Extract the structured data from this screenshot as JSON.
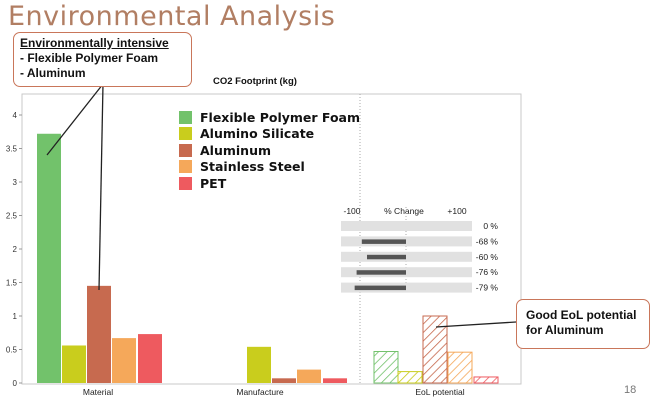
{
  "slide": {
    "title": "Environmental Analysis",
    "page_number": "18"
  },
  "callouts": {
    "intensive": {
      "heading": "Environmentally intensive",
      "items": [
        "- Flexible Polymer Foam",
        "- Aluminum"
      ]
    },
    "eol": {
      "lines": [
        "Good EoL potential",
        "for Aluminum"
      ]
    }
  },
  "change_panel": {
    "header_left": "-100",
    "header_mid": "% Change",
    "header_right": "+100",
    "rows": [
      {
        "value": 0,
        "label": "0 %"
      },
      {
        "value": -68,
        "label": "-68 %"
      },
      {
        "value": -60,
        "label": "-60 %"
      },
      {
        "value": -76,
        "label": "-76 %"
      },
      {
        "value": -79,
        "label": "-79 %"
      }
    ]
  },
  "chart_data": {
    "type": "bar",
    "title": "CO2 Footprint (kg)",
    "xlabel": "",
    "ylabel": "",
    "categories": [
      "Material",
      "Manufacture",
      "EoL potential"
    ],
    "ylim": [
      0,
      4.3
    ],
    "yticks": [
      0,
      0.5,
      1,
      1.5,
      2,
      2.5,
      3,
      3.5,
      4
    ],
    "ytick_labels": [
      "0",
      "0.5",
      "1",
      "1.5",
      "2",
      "2.5",
      "3",
      "3.5",
      "4"
    ],
    "grid": false,
    "legend_position": "top-center",
    "hatched_category": "EoL potential",
    "series": [
      {
        "name": "Flexible Polymer Foam",
        "color": "#72c26b",
        "values": [
          3.72,
          0,
          0.47
        ]
      },
      {
        "name": "Alumino Silicate",
        "color": "#c9cd1d",
        "values": [
          0.56,
          0.54,
          0.17
        ]
      },
      {
        "name": "Aluminum",
        "color": "#c76a4f",
        "values": [
          1.45,
          0.07,
          1.0
        ]
      },
      {
        "name": "Stainless Steel",
        "color": "#f5a85a",
        "values": [
          0.67,
          0.2,
          0.46
        ]
      },
      {
        "name": "PET",
        "color": "#ee5a5f",
        "values": [
          0.73,
          0.07,
          0.09
        ]
      }
    ]
  }
}
